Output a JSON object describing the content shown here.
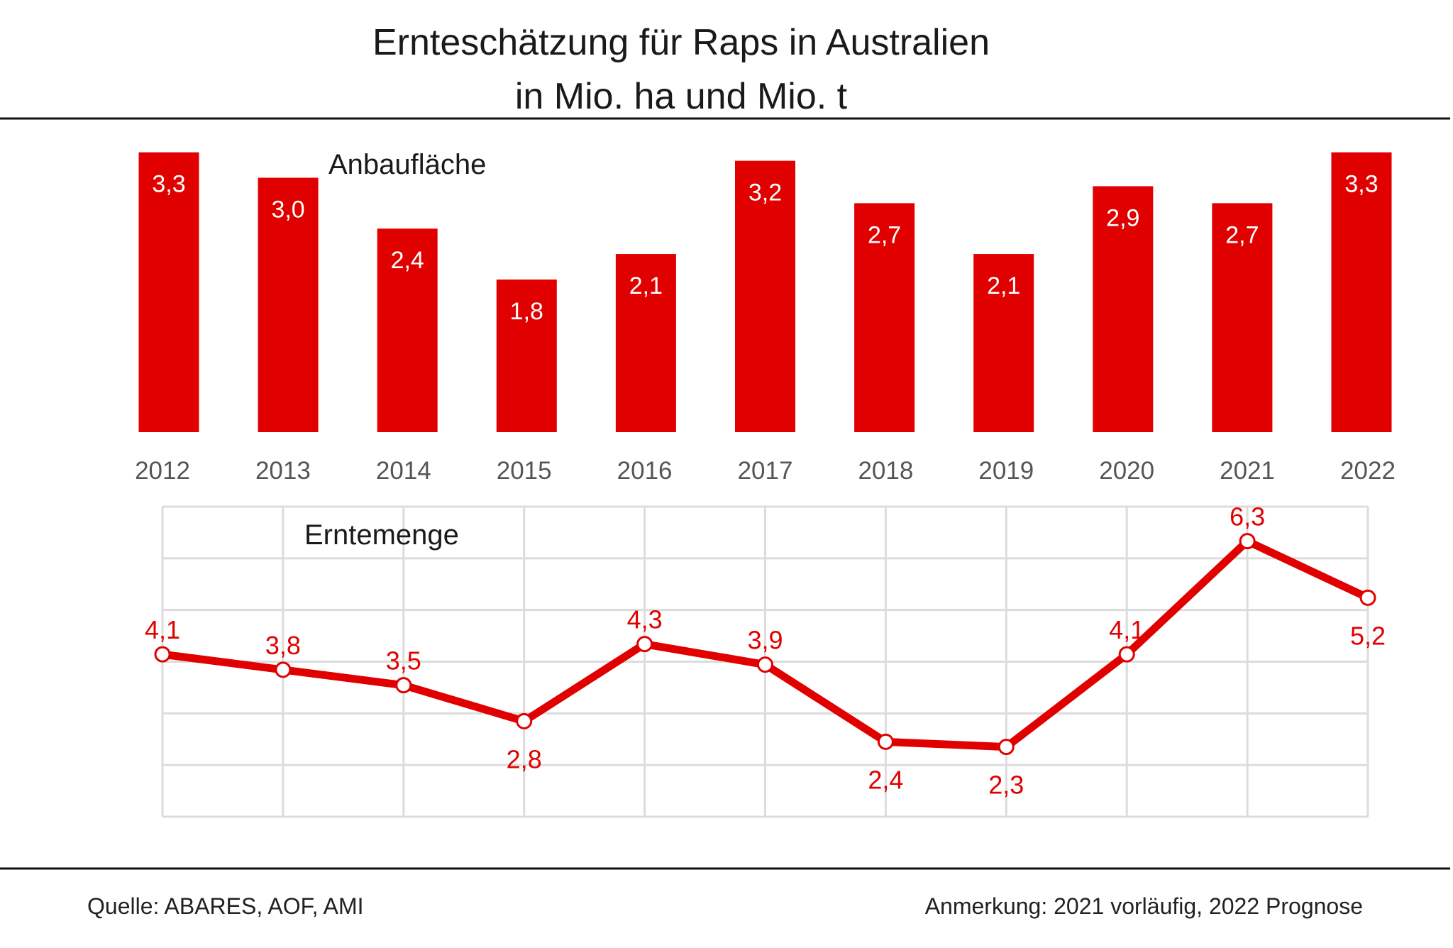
{
  "title_line1": "Ernteschätzung für Raps in Australien",
  "title_line2": "in Mio. ha und Mio. t",
  "footer": {
    "source": "Quelle:  ABARES, AOF, AMI",
    "note": "Anmerkung: 2021 vorläufig, 2022 Prognose"
  },
  "colors": {
    "accent": "#e10000",
    "grid": "#dcdcdc",
    "rule": "#111111"
  },
  "chart_data": [
    {
      "type": "bar",
      "title": "Anbaufläche",
      "unit": "Mio. ha",
      "categories": [
        "2012",
        "2013",
        "2014",
        "2015",
        "2016",
        "2017",
        "2018",
        "2019",
        "2020",
        "2021",
        "2022"
      ],
      "values": [
        3.3,
        3.0,
        2.4,
        1.8,
        2.1,
        3.2,
        2.7,
        2.1,
        2.9,
        2.7,
        3.3
      ],
      "labels": [
        "3,3",
        "3,0",
        "2,4",
        "1,8",
        "2,1",
        "3,2",
        "2,7",
        "2,1",
        "2,9",
        "2,7",
        "3,3"
      ],
      "ylim": [
        0,
        3.5
      ],
      "grid": false
    },
    {
      "type": "line",
      "title": "Erntemenge",
      "unit": "Mio. t",
      "categories": [
        "2012",
        "2013",
        "2014",
        "2015",
        "2016",
        "2017",
        "2018",
        "2019",
        "2020",
        "2021",
        "2022"
      ],
      "values": [
        4.1,
        3.8,
        3.5,
        2.8,
        4.3,
        3.9,
        2.4,
        2.3,
        4.1,
        6.3,
        5.2
      ],
      "labels": [
        "4,1",
        "3,8",
        "3,5",
        "2,8",
        "4,3",
        "3,9",
        "2,4",
        "2,3",
        "4,1",
        "6,3",
        "5,2"
      ],
      "label_positions": [
        "above",
        "above",
        "above",
        "below",
        "above",
        "above",
        "below",
        "below",
        "above",
        "above",
        "below"
      ],
      "grid": true
    }
  ]
}
